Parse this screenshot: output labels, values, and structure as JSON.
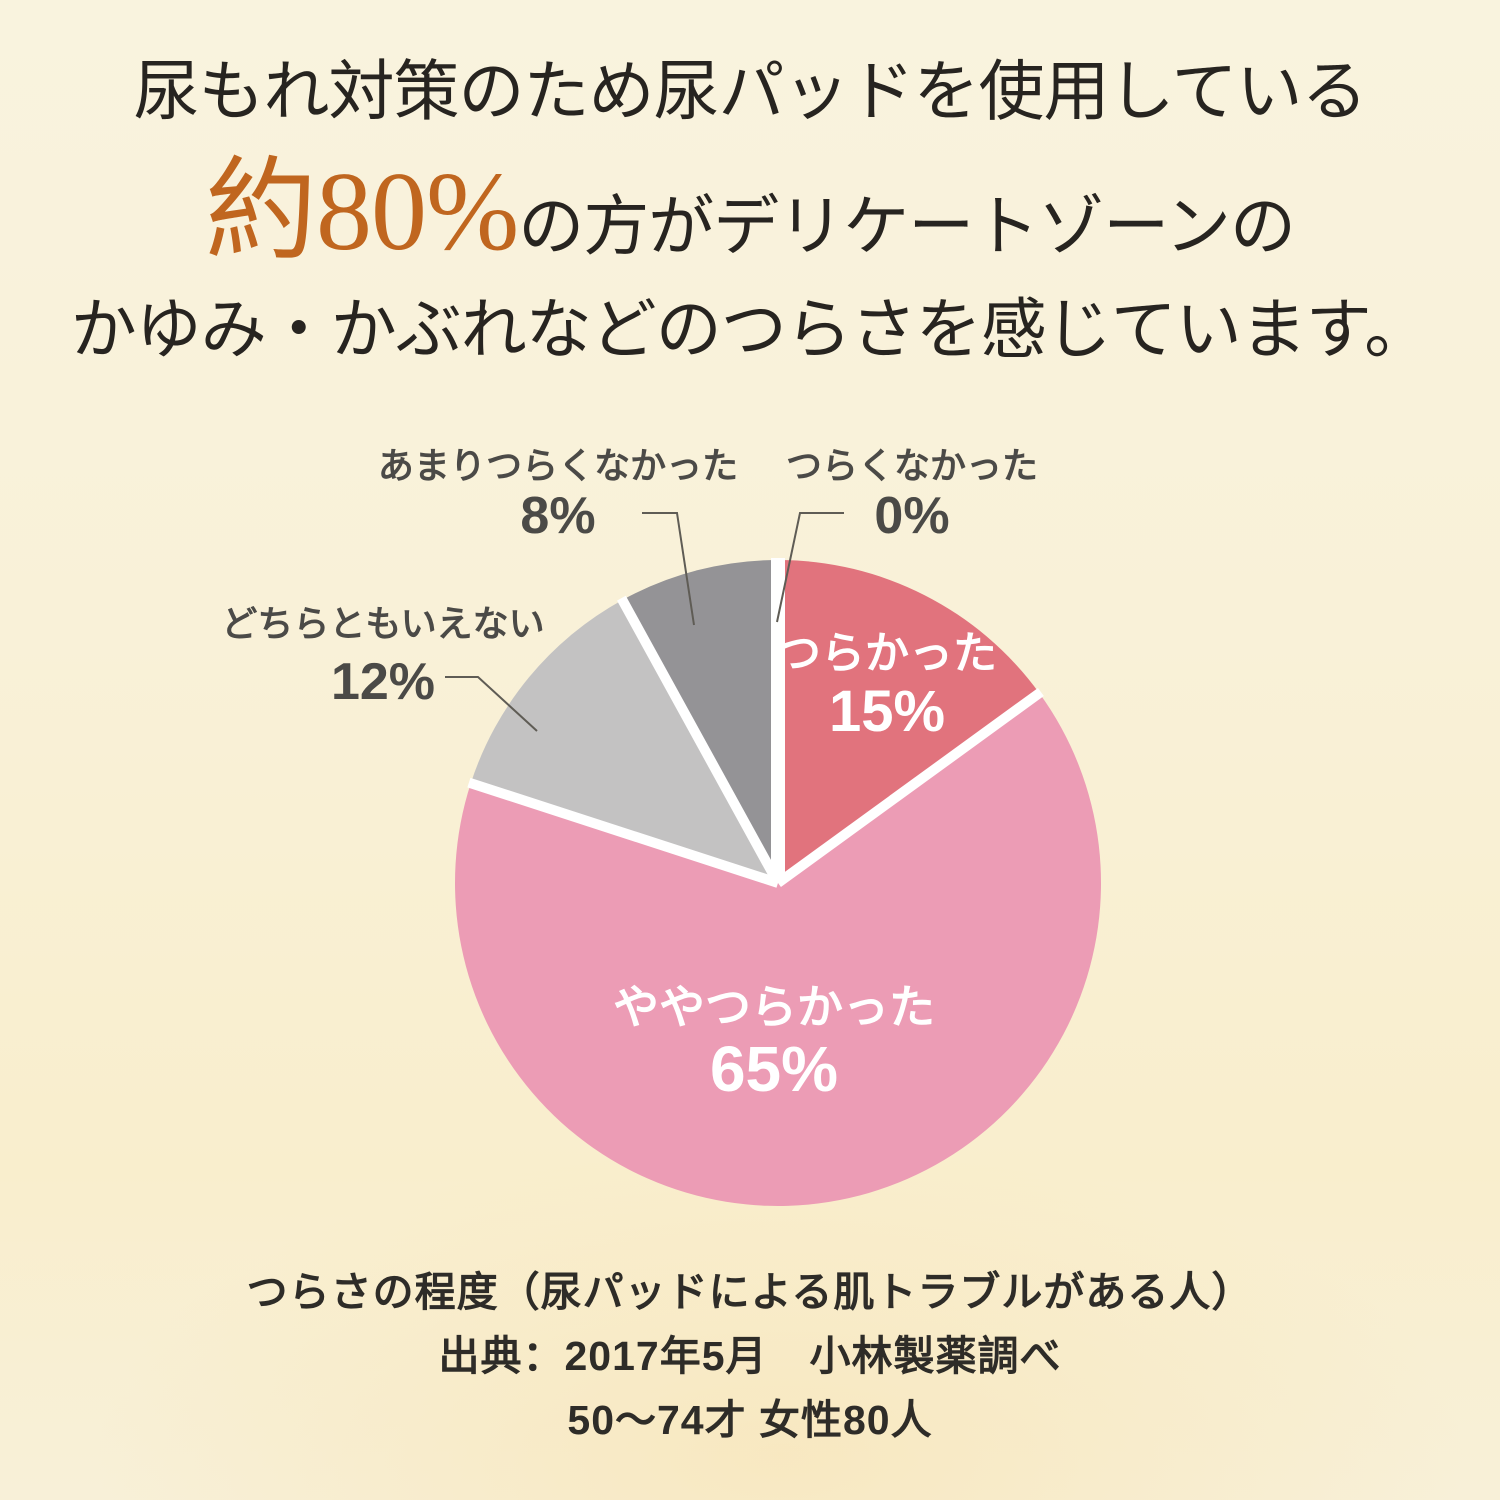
{
  "title": {
    "line1": "尿もれ対策のため尿パッドを使用している",
    "line2_highlight": "約80%",
    "line2_rest": "の方がデリケートゾーンの",
    "line3": "かゆみ・かぶれなどのつらさを感じています。"
  },
  "chart_data": {
    "type": "pie",
    "title": "つらさの程度（尿パッドによる肌トラブルがある人）",
    "unit": "%",
    "clockwise": true,
    "start_angle_deg": 0,
    "legend_position": "outside-callouts",
    "slices": [
      {
        "label": "つらくなかった",
        "value": 0,
        "value_label": "0%",
        "color": "#ffffff"
      },
      {
        "label": "つらかった",
        "value": 15,
        "value_label": "15%",
        "color": "#e1737d"
      },
      {
        "label": "ややつらかった",
        "value": 65,
        "value_label": "65%",
        "color": "#ec9cb5"
      },
      {
        "label": "どちらともいえない",
        "value": 12,
        "value_label": "12%",
        "color": "#c3c2c2"
      },
      {
        "label": "あまりつらくなかった",
        "value": 8,
        "value_label": "8%",
        "color": "#949396"
      }
    ],
    "separator_color": "#ffffff",
    "callout_line_color": "#5f5c55"
  },
  "source": {
    "line1": "出典：2017年5月　小林製薬調べ",
    "line2": "50〜74才 女性80人"
  },
  "theme": {
    "highlight": "#c0661f",
    "text_dark": "#272420",
    "label_gray": "#4b4a47",
    "background_top": "#f9f3de",
    "background_bottom": "#f8eecd"
  }
}
